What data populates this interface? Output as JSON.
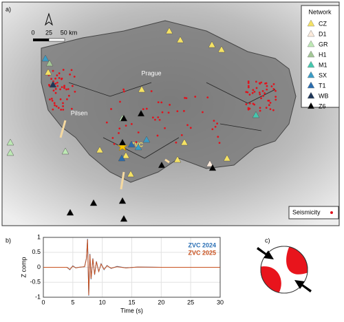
{
  "panel_a": {
    "label": "a)",
    "scale": [
      "0",
      "25",
      "50 km"
    ],
    "legend": {
      "title": "Network",
      "entries": [
        {
          "name": "CZ",
          "color": "#f5e264"
        },
        {
          "name": "D1",
          "color": "#fbeadb"
        },
        {
          "name": "GR",
          "color": "#bde8b4"
        },
        {
          "name": "H1",
          "color": "#a3c795"
        },
        {
          "name": "M1",
          "color": "#45c8ae"
        },
        {
          "name": "SX",
          "color": "#3a9cc6"
        },
        {
          "name": "T1",
          "color": "#2a6cae"
        },
        {
          "name": "WB",
          "color": "#1d3658"
        },
        {
          "name": "Z6",
          "color": "#000000"
        }
      ]
    },
    "places": [
      "Prague",
      "Pilsen",
      "ZVC"
    ],
    "seismicity": "Seismicity",
    "seismicity_color": "#e0141e"
  },
  "panel_b": {
    "label": "b)"
  },
  "panel_c": {
    "label": "c)"
  },
  "chart_data": {
    "type": "line",
    "xlabel": "Time (s)",
    "ylabel": "Z comp",
    "xlim": [
      0,
      30
    ],
    "ylim": [
      -1,
      1
    ],
    "xticks": [
      0,
      5,
      10,
      15,
      20,
      25,
      30
    ],
    "yticks": [
      -1,
      -0.5,
      0,
      0.5,
      1
    ],
    "grid": true,
    "x": [
      0,
      4,
      4.5,
      5,
      5.5,
      6,
      7,
      7.3,
      7.5,
      7.7,
      7.9,
      8.1,
      8.4,
      8.7,
      9,
      9.4,
      9.8,
      10.3,
      10.8,
      11.5,
      12.5,
      14,
      16,
      20,
      25,
      30
    ],
    "series": [
      {
        "name": "ZVC 2024",
        "color": "#2a6fb5",
        "values": [
          0,
          0,
          -0.08,
          0.05,
          -0.02,
          0,
          0.02,
          0.3,
          0.95,
          -0.95,
          0.45,
          -0.4,
          0.3,
          -0.25,
          0.2,
          -0.15,
          0.12,
          -0.08,
          0.06,
          -0.04,
          0.03,
          -0.02,
          0.01,
          0,
          0,
          0
        ]
      },
      {
        "name": "ZVC 2025",
        "color": "#c8501e",
        "values": [
          0,
          0,
          -0.07,
          0.04,
          -0.02,
          0,
          0.02,
          0.28,
          0.93,
          -0.93,
          0.43,
          -0.38,
          0.29,
          -0.24,
          0.19,
          -0.14,
          0.11,
          -0.07,
          0.05,
          -0.03,
          0.02,
          -0.02,
          0.01,
          0,
          0,
          0
        ]
      }
    ]
  }
}
